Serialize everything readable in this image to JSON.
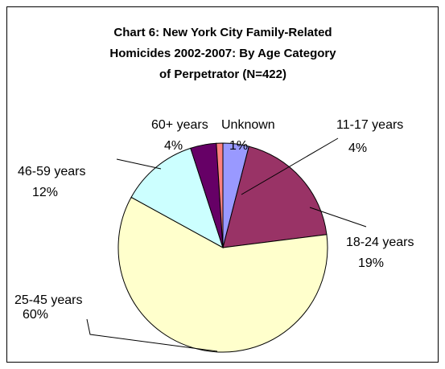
{
  "chart_data": {
    "type": "pie",
    "title": [
      "Chart 6: New York City Family-Related",
      "Homicides 2002-2007: By Age Category",
      "of Perpetrator (N=422)"
    ],
    "categories": [
      "11-17 years",
      "18-24 years",
      "25-45 years",
      "46-59 years",
      "60+ years",
      "Unknown"
    ],
    "values": [
      4,
      19,
      60,
      12,
      4,
      1
    ],
    "value_labels": [
      "4%",
      "19%",
      "60%",
      "12%",
      "4%",
      "1%"
    ],
    "colors": [
      "#9999FF",
      "#993366",
      "#FFFFCC",
      "#CCFFFF",
      "#660066",
      "#FF8080"
    ]
  }
}
